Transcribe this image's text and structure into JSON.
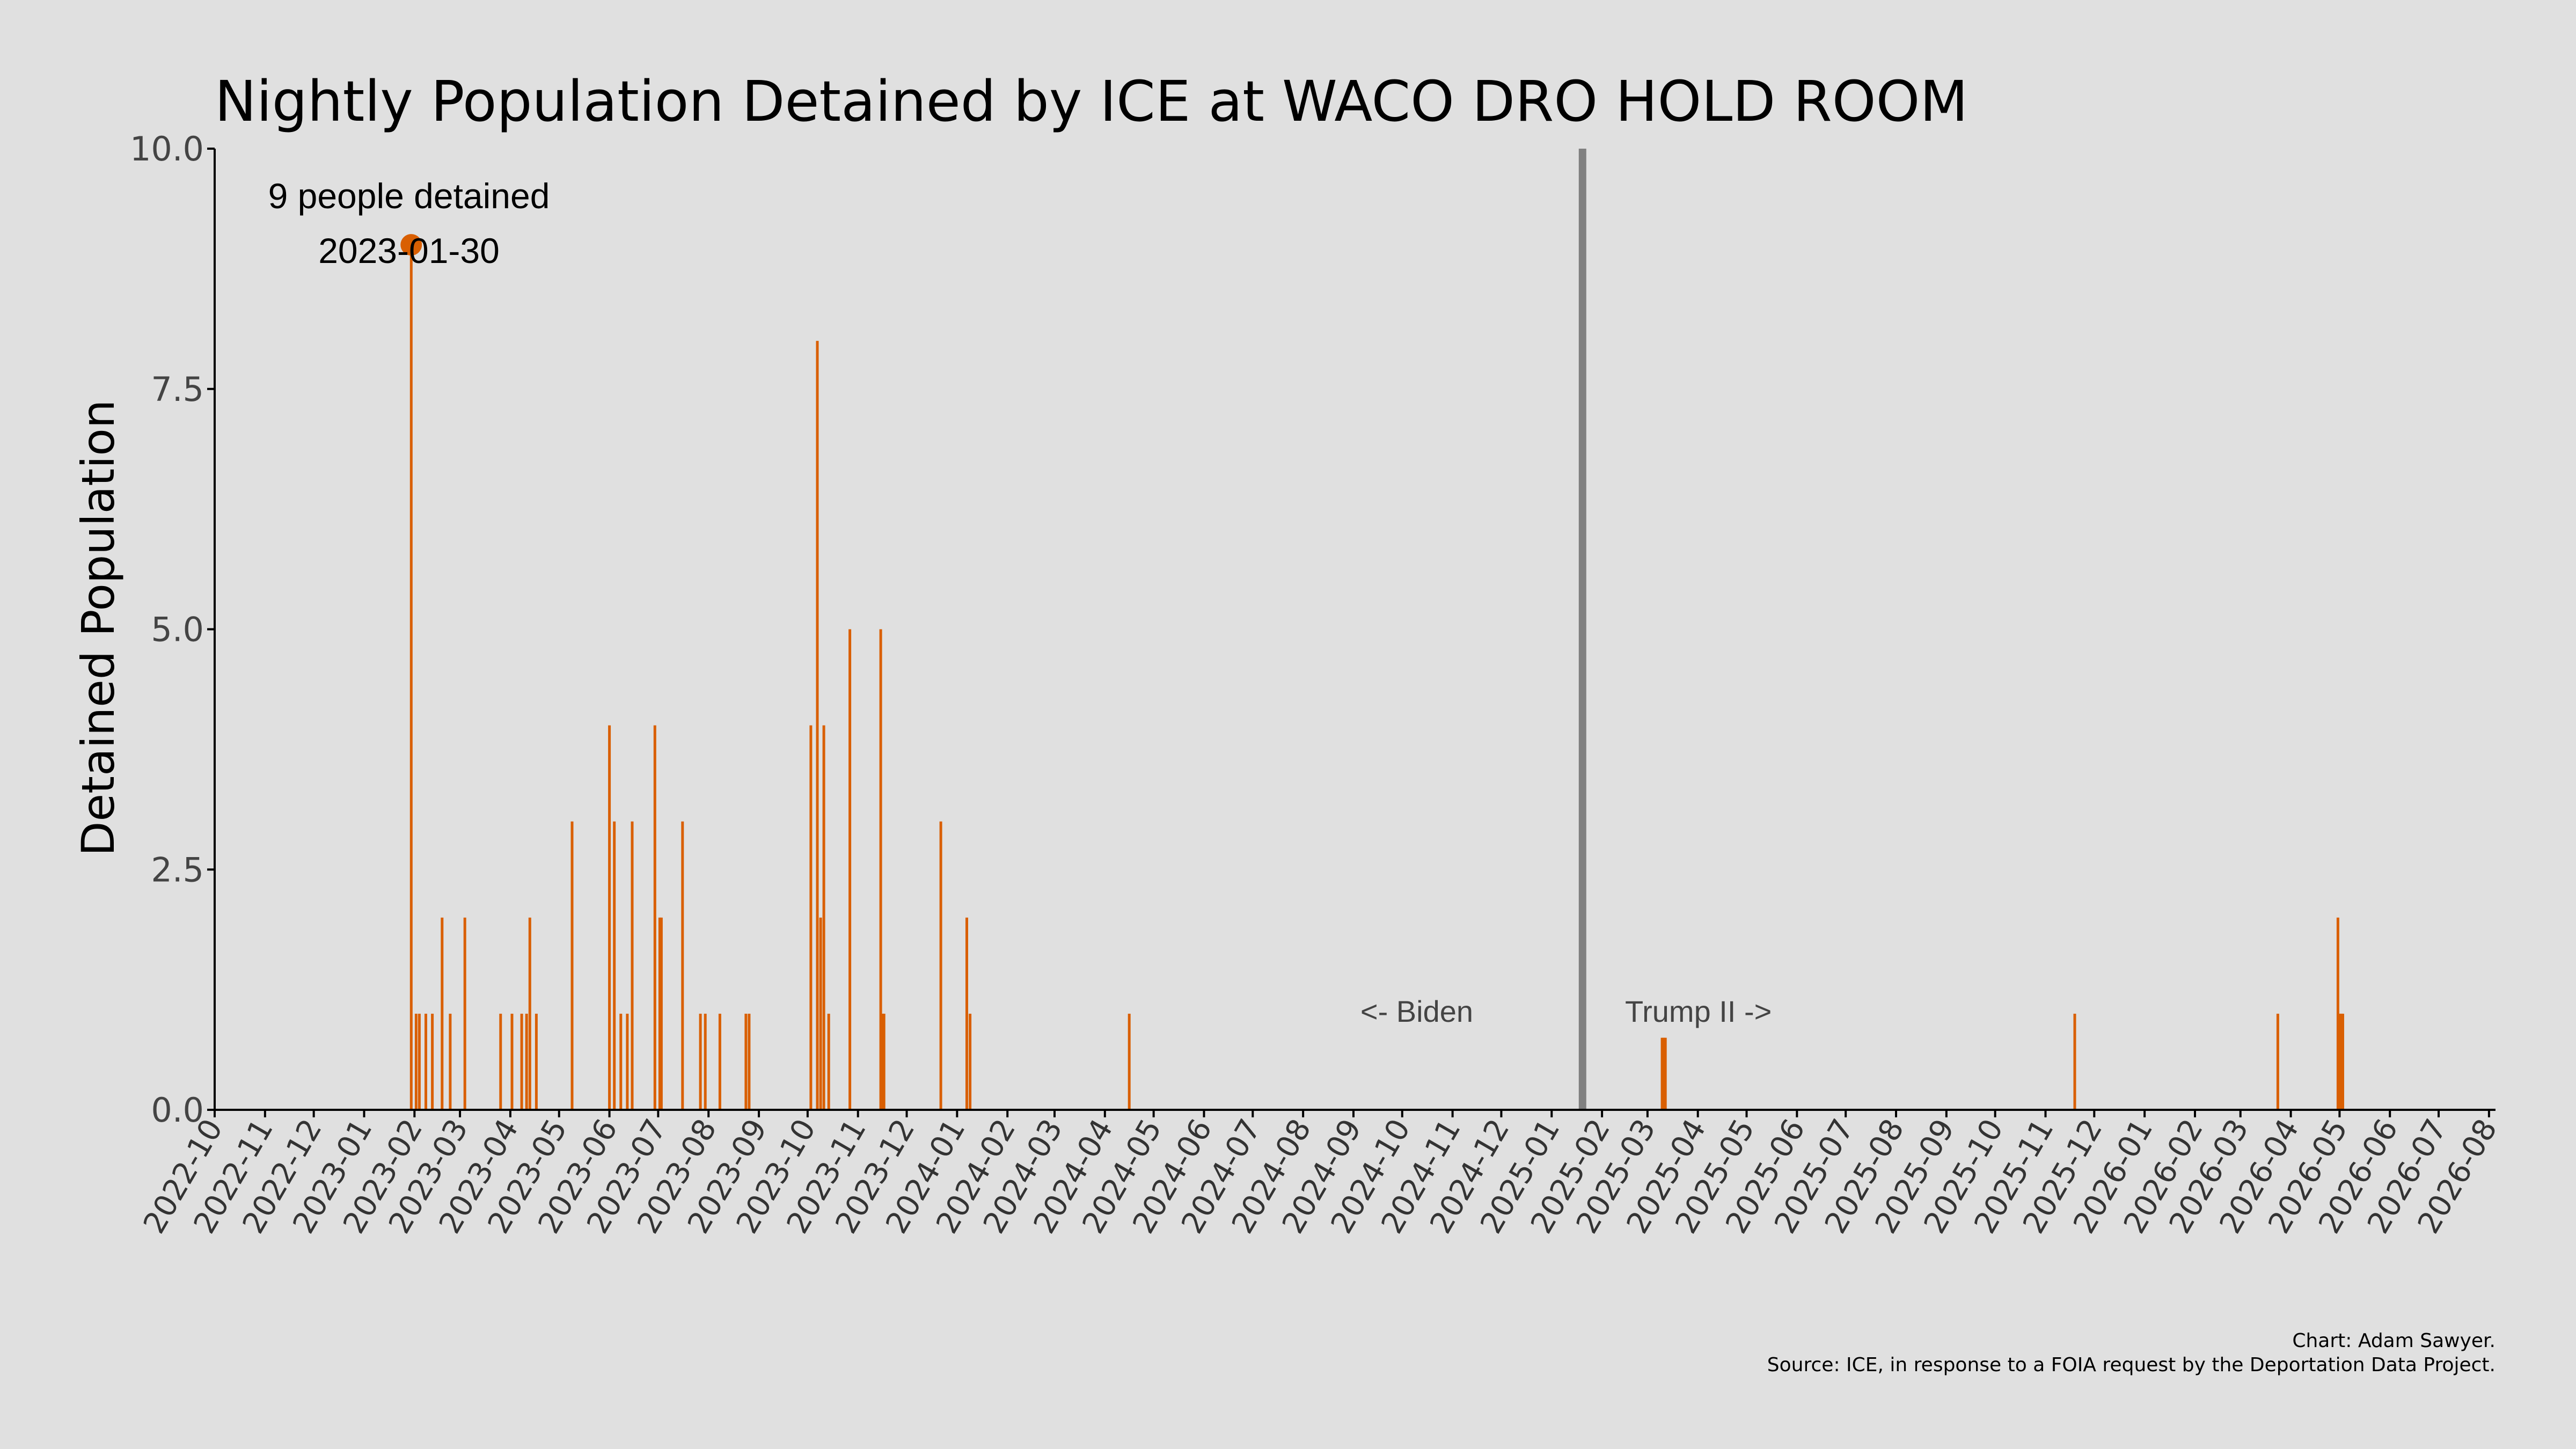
{
  "chart_data": {
    "type": "bar",
    "title": "Nightly Population Detained by ICE at WACO DRO HOLD ROOM",
    "ylabel": "Detained Population",
    "xlabel": "",
    "ylim": [
      0,
      10
    ],
    "xlim": [
      "2022-10-01",
      "2026-08-05"
    ],
    "y_ticks": [
      "0.0",
      "2.5",
      "5.0",
      "7.5",
      "10.0"
    ],
    "x_ticks": [
      "2022-10",
      "2022-11",
      "2022-12",
      "2023-01",
      "2023-02",
      "2023-03",
      "2023-04",
      "2023-05",
      "2023-06",
      "2023-07",
      "2023-08",
      "2023-09",
      "2023-10",
      "2023-11",
      "2023-12",
      "2024-01",
      "2024-02",
      "2024-03",
      "2024-04",
      "2024-05",
      "2024-06",
      "2024-07",
      "2024-08",
      "2024-09",
      "2024-10",
      "2024-11",
      "2024-12",
      "2025-01",
      "2025-02",
      "2025-03",
      "2025-04",
      "2025-05",
      "2025-06",
      "2025-07",
      "2025-08",
      "2025-09",
      "2025-10",
      "2025-11",
      "2025-12",
      "2026-01",
      "2026-02",
      "2026-03",
      "2026-04",
      "2026-05",
      "2026-06",
      "2026-07",
      "2026-08"
    ],
    "bar_color": "#d95f02",
    "series": [
      {
        "x": [
          "2023-01-30",
          "2023-02-02",
          "2023-02-04",
          "2023-02-08",
          "2023-02-12",
          "2023-02-18",
          "2023-02-23",
          "2023-03-04",
          "2023-03-26",
          "2023-04-02",
          "2023-04-08",
          "2023-04-11",
          "2023-04-13",
          "2023-04-17",
          "2023-05-09",
          "2023-06-01",
          "2023-06-04",
          "2023-06-08",
          "2023-06-12",
          "2023-06-15",
          "2023-06-29",
          "2023-07-02",
          "2023-07-03",
          "2023-07-16",
          "2023-07-27",
          "2023-07-30",
          "2023-08-08",
          "2023-08-24",
          "2023-08-26",
          "2023-10-03",
          "2023-10-07",
          "2023-10-09",
          "2023-10-11",
          "2023-10-14",
          "2023-10-27",
          "2023-11-15",
          "2023-11-16",
          "2023-11-17",
          "2023-12-22",
          "2024-01-07",
          "2024-01-09",
          "2024-04-16",
          "2025-03-10",
          "2025-03-11",
          "2025-03-12",
          "2025-11-19",
          "2026-03-24",
          "2026-04-30",
          "2026-05-01",
          "2026-05-02",
          "2026-05-03"
        ],
        "values": [
          9,
          1,
          1,
          1,
          1,
          2,
          1,
          2,
          1,
          1,
          1,
          1,
          2,
          1,
          3,
          4,
          3,
          1,
          1,
          3,
          4,
          2,
          2,
          3,
          1,
          1,
          1,
          1,
          1,
          4,
          8,
          2,
          4,
          1,
          5,
          5,
          1,
          1,
          3,
          2,
          1,
          1,
          0.75,
          0.75,
          0.75,
          1,
          1,
          2,
          1,
          1,
          1
        ]
      }
    ],
    "vline": {
      "x": "2025-01-20",
      "color": "#808080"
    },
    "peak_marker": {
      "x": "2023-01-30",
      "y": 9,
      "color": "#d95f02"
    },
    "annotations": {
      "peak_line1": "9 people detained",
      "peak_line2": "2023-01-30",
      "biden": "<- Biden",
      "trump": "Trump II ->"
    },
    "credits": {
      "line1": "Chart: Adam Sawyer.",
      "line2": "Source: ICE, in response to a FOIA request by the Deportation Data Project."
    },
    "grid": false
  }
}
